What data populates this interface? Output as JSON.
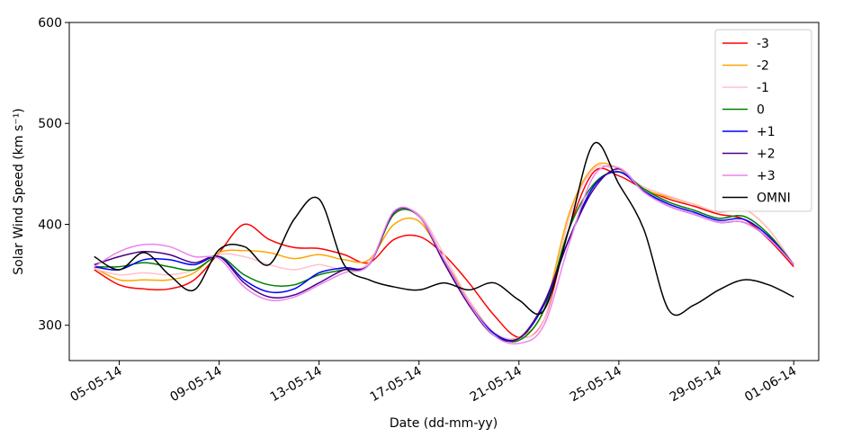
{
  "chart_data": {
    "type": "line",
    "xlabel": "Date (dd-mm-yy)",
    "ylabel": "Solar Wind Speed (km s⁻¹)",
    "x": [
      "04-05-14",
      "05-05-14",
      "06-05-14",
      "07-05-14",
      "08-05-14",
      "09-05-14",
      "10-05-14",
      "11-05-14",
      "12-05-14",
      "13-05-14",
      "14-05-14",
      "15-05-14",
      "16-05-14",
      "17-05-14",
      "18-05-14",
      "19-05-14",
      "20-05-14",
      "21-05-14",
      "22-05-14",
      "23-05-14",
      "24-05-14",
      "25-05-14",
      "26-05-14",
      "27-05-14",
      "28-05-14",
      "29-05-14",
      "30-05-14",
      "31-05-14",
      "01-06-14"
    ],
    "series": [
      {
        "name": "-3",
        "color": "#ff0000",
        "values": [
          355,
          340,
          336,
          336,
          345,
          372,
          400,
          385,
          377,
          376,
          370,
          362,
          385,
          388,
          370,
          342,
          310,
          288,
          305,
          395,
          452,
          448,
          435,
          425,
          418,
          410,
          405,
          385,
          358
        ]
      },
      {
        "name": "-2",
        "color": "#ffa500",
        "values": [
          357,
          345,
          345,
          345,
          352,
          372,
          374,
          372,
          366,
          370,
          365,
          365,
          400,
          403,
          365,
          325,
          293,
          288,
          315,
          410,
          457,
          455,
          435,
          427,
          420,
          412,
          415,
          395,
          360
        ]
      },
      {
        "name": "-1",
        "color": "#ffc0cb",
        "values": [
          356,
          350,
          352,
          350,
          355,
          370,
          368,
          360,
          355,
          360,
          355,
          362,
          410,
          410,
          370,
          325,
          293,
          287,
          305,
          405,
          455,
          452,
          437,
          428,
          420,
          412,
          415,
          395,
          360
        ]
      },
      {
        "name": "0",
        "color": "#008000",
        "values": [
          358,
          358,
          362,
          358,
          355,
          368,
          350,
          340,
          340,
          350,
          355,
          360,
          410,
          408,
          365,
          322,
          292,
          285,
          315,
          395,
          440,
          452,
          435,
          422,
          414,
          406,
          408,
          390,
          360
        ]
      },
      {
        "name": "+1",
        "color": "#0000ff",
        "values": [
          358,
          355,
          365,
          365,
          360,
          368,
          345,
          333,
          336,
          352,
          357,
          360,
          412,
          408,
          365,
          322,
          292,
          287,
          320,
          385,
          438,
          452,
          433,
          420,
          412,
          404,
          405,
          388,
          360
        ]
      },
      {
        "name": "+2",
        "color": "#4b0082",
        "values": [
          360,
          368,
          373,
          370,
          362,
          368,
          342,
          328,
          330,
          342,
          355,
          360,
          412,
          408,
          362,
          320,
          290,
          287,
          322,
          385,
          435,
          455,
          432,
          418,
          410,
          402,
          402,
          386,
          360
        ]
      },
      {
        "name": "+3",
        "color": "#ee82ee",
        "values": [
          358,
          373,
          380,
          378,
          368,
          366,
          338,
          325,
          328,
          340,
          352,
          360,
          413,
          408,
          365,
          322,
          290,
          282,
          300,
          380,
          448,
          456,
          432,
          418,
          410,
          402,
          402,
          386,
          360
        ]
      },
      {
        "name": "OMNI",
        "color": "#000000",
        "values": [
          368,
          355,
          372,
          350,
          335,
          375,
          378,
          360,
          405,
          425,
          360,
          345,
          338,
          335,
          342,
          335,
          342,
          325,
          315,
          395,
          480,
          440,
          395,
          315,
          320,
          335,
          345,
          340,
          328
        ]
      }
    ],
    "xlim": [
      "03-05-14",
      "02-06-14"
    ],
    "xticks": [
      "05-05-14",
      "09-05-14",
      "13-05-14",
      "17-05-14",
      "21-05-14",
      "25-05-14",
      "29-05-14",
      "01-06-14"
    ],
    "ylim": [
      265,
      600
    ],
    "yticks": [
      300,
      400,
      500,
      600
    ],
    "legend": "upper right"
  }
}
